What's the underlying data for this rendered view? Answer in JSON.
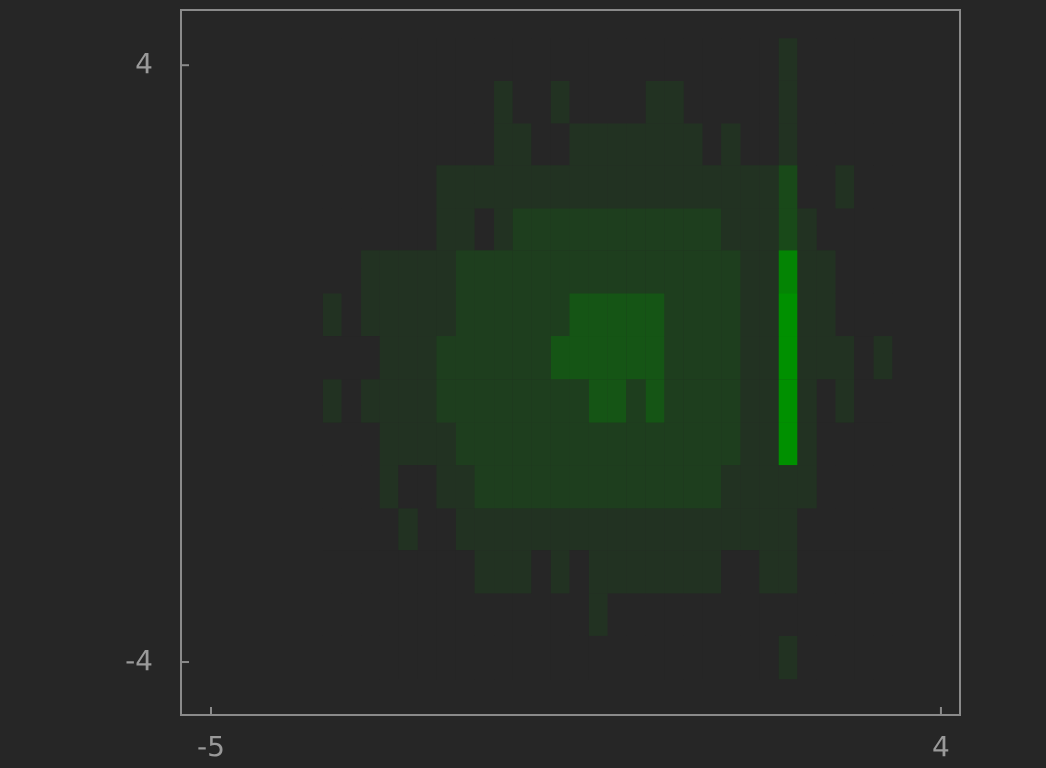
{
  "chart_data": {
    "type": "hist2d",
    "xlim": [
      -5.37,
      4.235
    ],
    "ylim": [
      -4.71,
      4.74
    ],
    "xticks": [
      -5,
      4
    ],
    "yticks": [
      -4,
      4
    ],
    "colormap": [
      "#262626",
      "#009000"
    ],
    "xbins": [
      -3.62,
      -3.39,
      -3.15,
      -2.92,
      -2.69,
      -2.45,
      -2.22,
      -1.98,
      -1.75,
      -1.51,
      -1.28,
      -1.05,
      -0.81,
      -0.58,
      -0.34,
      -0.11,
      0.12,
      0.36,
      0.59,
      0.83,
      1.06,
      1.29,
      1.53,
      1.76,
      2.0,
      2.23,
      2.47,
      2.7,
      2.93,
      3.17,
      3.4
    ],
    "ybins": [
      -4.23,
      -3.65,
      -3.08,
      -2.5,
      -1.94,
      -1.36,
      -0.79,
      -0.21,
      0.37,
      0.94,
      1.52,
      2.08,
      2.66,
      3.22,
      3.79,
      4.36
    ],
    "counts": [
      [
        0,
        0,
        0,
        0,
        0,
        0,
        0,
        0,
        0,
        0,
        0,
        0,
        0,
        0,
        0,
        0,
        0,
        0,
        0,
        0,
        0,
        0,
        0,
        0,
        1,
        0,
        0,
        0,
        0,
        0
      ],
      [
        0,
        0,
        0,
        0,
        0,
        0,
        0,
        0,
        0,
        0,
        0,
        0,
        0,
        0,
        1,
        0,
        0,
        0,
        0,
        0,
        0,
        0,
        0,
        0,
        0,
        0,
        0,
        0,
        0,
        0
      ],
      [
        0,
        0,
        0,
        0,
        0,
        0,
        0,
        0,
        1,
        1,
        1,
        0,
        1,
        0,
        1,
        1,
        1,
        1,
        1,
        1,
        1,
        0,
        0,
        1,
        1,
        0,
        0,
        0,
        0,
        0
      ],
      [
        0,
        0,
        0,
        0,
        1,
        0,
        0,
        1,
        1,
        1,
        1,
        1,
        1,
        1,
        1,
        1,
        1,
        1,
        1,
        1,
        1,
        1,
        1,
        1,
        1,
        0,
        0,
        0,
        0,
        0
      ],
      [
        0,
        0,
        0,
        1,
        0,
        0,
        1,
        1,
        2,
        2,
        2,
        2,
        2,
        2,
        2,
        2,
        2,
        2,
        2,
        2,
        2,
        1,
        1,
        1,
        1,
        1,
        0,
        0,
        0,
        0
      ],
      [
        0,
        0,
        0,
        1,
        1,
        1,
        1,
        2,
        2,
        2,
        2,
        2,
        2,
        2,
        2,
        2,
        2,
        2,
        2,
        2,
        2,
        2,
        1,
        1,
        9,
        1,
        0,
        0,
        0,
        0
      ],
      [
        1,
        0,
        1,
        1,
        1,
        1,
        2,
        2,
        2,
        2,
        2,
        2,
        2,
        2,
        4,
        4,
        2,
        4,
        2,
        2,
        2,
        2,
        1,
        1,
        9,
        1,
        0,
        1,
        0,
        0
      ],
      [
        0,
        0,
        0,
        1,
        1,
        1,
        2,
        2,
        2,
        2,
        2,
        2,
        4,
        4,
        4,
        4,
        4,
        4,
        2,
        2,
        2,
        2,
        1,
        1,
        9,
        1,
        1,
        1,
        0,
        1
      ],
      [
        1,
        0,
        1,
        1,
        1,
        1,
        1,
        2,
        2,
        2,
        2,
        2,
        2,
        4,
        4,
        4,
        4,
        4,
        2,
        2,
        2,
        2,
        1,
        1,
        9,
        1,
        1,
        0,
        0,
        0
      ],
      [
        0,
        0,
        1,
        1,
        1,
        1,
        1,
        2,
        2,
        2,
        2,
        2,
        2,
        2,
        2,
        2,
        2,
        2,
        2,
        2,
        2,
        2,
        1,
        1,
        8,
        1,
        1,
        0,
        0,
        0
      ],
      [
        0,
        0,
        0,
        0,
        0,
        0,
        1,
        1,
        0,
        1,
        2,
        2,
        2,
        2,
        2,
        2,
        2,
        2,
        2,
        2,
        2,
        1,
        1,
        1,
        3,
        1,
        0,
        0,
        0,
        0
      ],
      [
        0,
        0,
        0,
        0,
        0,
        0,
        1,
        1,
        1,
        1,
        1,
        1,
        1,
        1,
        1,
        1,
        1,
        1,
        1,
        1,
        1,
        1,
        1,
        1,
        3,
        0,
        0,
        1,
        0,
        0
      ],
      [
        0,
        0,
        0,
        0,
        0,
        0,
        0,
        0,
        0,
        1,
        1,
        0,
        0,
        1,
        1,
        1,
        1,
        1,
        1,
        1,
        0,
        1,
        0,
        0,
        1,
        0,
        0,
        0,
        0,
        0
      ],
      [
        0,
        0,
        0,
        0,
        0,
        0,
        0,
        0,
        0,
        1,
        0,
        0,
        1,
        0,
        0,
        0,
        0,
        1,
        1,
        0,
        0,
        0,
        0,
        0,
        1,
        0,
        0,
        0,
        0,
        0
      ],
      [
        0,
        0,
        0,
        0,
        0,
        0,
        0,
        0,
        0,
        0,
        0,
        0,
        0,
        0,
        0,
        0,
        0,
        0,
        0,
        0,
        0,
        0,
        0,
        0,
        1,
        0,
        0,
        0,
        0,
        0
      ]
    ]
  }
}
